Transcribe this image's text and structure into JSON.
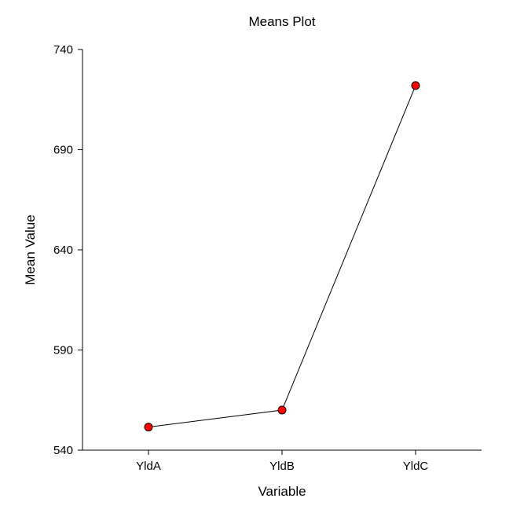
{
  "chart_data": {
    "type": "line",
    "title": "Means Plot",
    "xlabel": "Variable",
    "ylabel": "Mean Value",
    "categories": [
      "YldA",
      "YldB",
      "YldC"
    ],
    "series": [
      {
        "values": [
          551.5,
          560,
          722
        ]
      }
    ],
    "ylim": [
      540,
      740
    ],
    "yticks": [
      "540",
      "590",
      "640",
      "690",
      "740"
    ],
    "grid": false,
    "marker_color": "#ff0000",
    "line_color": "#000000"
  }
}
